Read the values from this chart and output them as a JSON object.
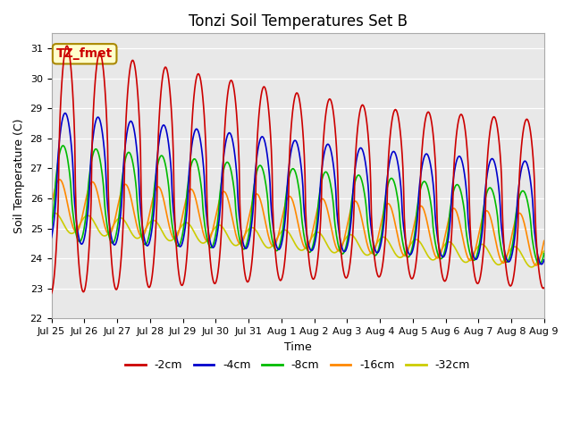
{
  "title": "Tonzi Soil Temperatures Set B",
  "xlabel": "Time",
  "ylabel": "Soil Temperature (C)",
  "ylim": [
    22.0,
    31.5
  ],
  "yticks": [
    22.0,
    23.0,
    24.0,
    25.0,
    26.0,
    27.0,
    28.0,
    29.0,
    30.0,
    31.0
  ],
  "series_labels": [
    "-2cm",
    "-4cm",
    "-8cm",
    "-16cm",
    "-32cm"
  ],
  "series_colors": [
    "#cc0000",
    "#0000cc",
    "#00bb00",
    "#ff8800",
    "#cccc00"
  ],
  "annotation_text": "TZ_fmet",
  "annotation_bg": "#ffffcc",
  "annotation_border": "#aa8800",
  "plot_bg": "#e8e8e8",
  "n_points": 720,
  "start_day": 0,
  "end_day": 15.0,
  "title_fontsize": 12,
  "axis_fontsize": 9,
  "tick_fontsize": 8,
  "legend_fontsize": 9,
  "xtick_labels": [
    "Jul 25",
    "Jul 26",
    "Jul 27",
    "Jul 28",
    "Jul 29",
    "Jul 30",
    "Jul 31",
    "Aug 1",
    "Aug 2",
    "Aug 3",
    "Aug 4",
    "Aug 5",
    "Aug 6",
    "Aug 7",
    "Aug 8",
    "Aug 9"
  ],
  "xtick_positions": [
    0,
    1,
    2,
    3,
    4,
    5,
    6,
    7,
    8,
    9,
    10,
    11,
    12,
    13,
    14,
    15
  ]
}
